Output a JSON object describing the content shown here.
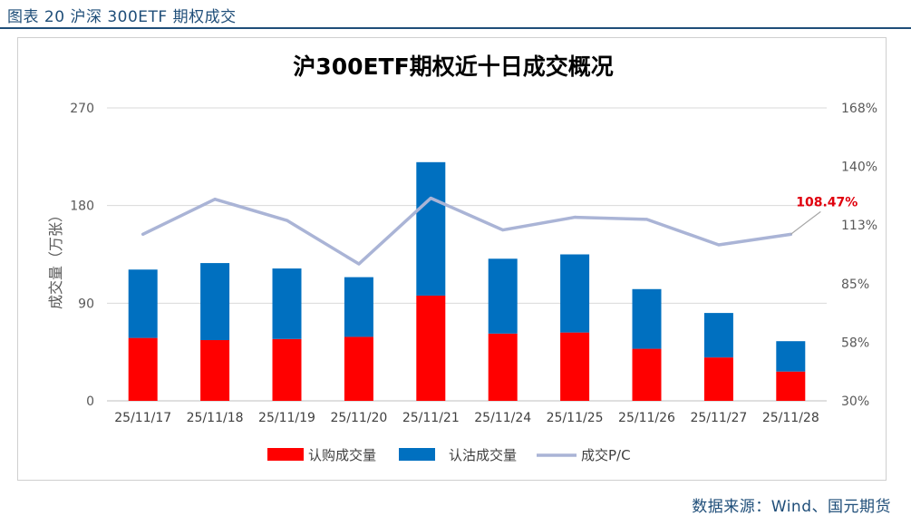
{
  "figure_label": "图表 20 沪深 300ETF 期权成交",
  "source_note": "数据来源：Wind、国元期货",
  "colors": {
    "call": "#ff0000",
    "put": "#0070c0",
    "pc_line": "#aab4d6",
    "header": "#1f4e79",
    "grid": "#d9d9d9",
    "text": "#595959",
    "callout": "#e0000d"
  },
  "chart_data": {
    "type": "bar",
    "stacked": true,
    "title": "沪300ETF期权近十日成交概况",
    "ylabel": "成交量（万张）",
    "categories": [
      "25/11/17",
      "25/11/18",
      "25/11/19",
      "25/11/20",
      "25/11/21",
      "25/11/24",
      "25/11/25",
      "25/11/26",
      "25/11/27",
      "25/11/28"
    ],
    "series": [
      {
        "name": "认购成交量",
        "axis": "left",
        "type": "bar",
        "values": [
          58,
          56,
          57,
          59,
          97,
          62,
          63,
          48,
          40,
          27
        ]
      },
      {
        "name": "认沽成交量",
        "axis": "left",
        "type": "bar",
        "values": [
          63,
          71,
          65,
          55,
          123,
          69,
          72,
          55,
          41,
          28
        ]
      },
      {
        "name": "成交P/C",
        "axis": "right",
        "type": "line",
        "values": [
          108.5,
          125.0,
          115.0,
          94.5,
          125.5,
          110.5,
          116.5,
          115.5,
          103.5,
          108.47
        ]
      }
    ],
    "ylim": [
      0,
      270
    ],
    "yticks": [
      0,
      90,
      180,
      270
    ],
    "y2lim": [
      30,
      168
    ],
    "y2ticks": [
      "30%",
      "58%",
      "85%",
      "113%",
      "140%",
      "168%"
    ],
    "annotation": {
      "label": "108.47%",
      "series": "成交P/C",
      "index": 9
    },
    "legend": "bottom"
  }
}
